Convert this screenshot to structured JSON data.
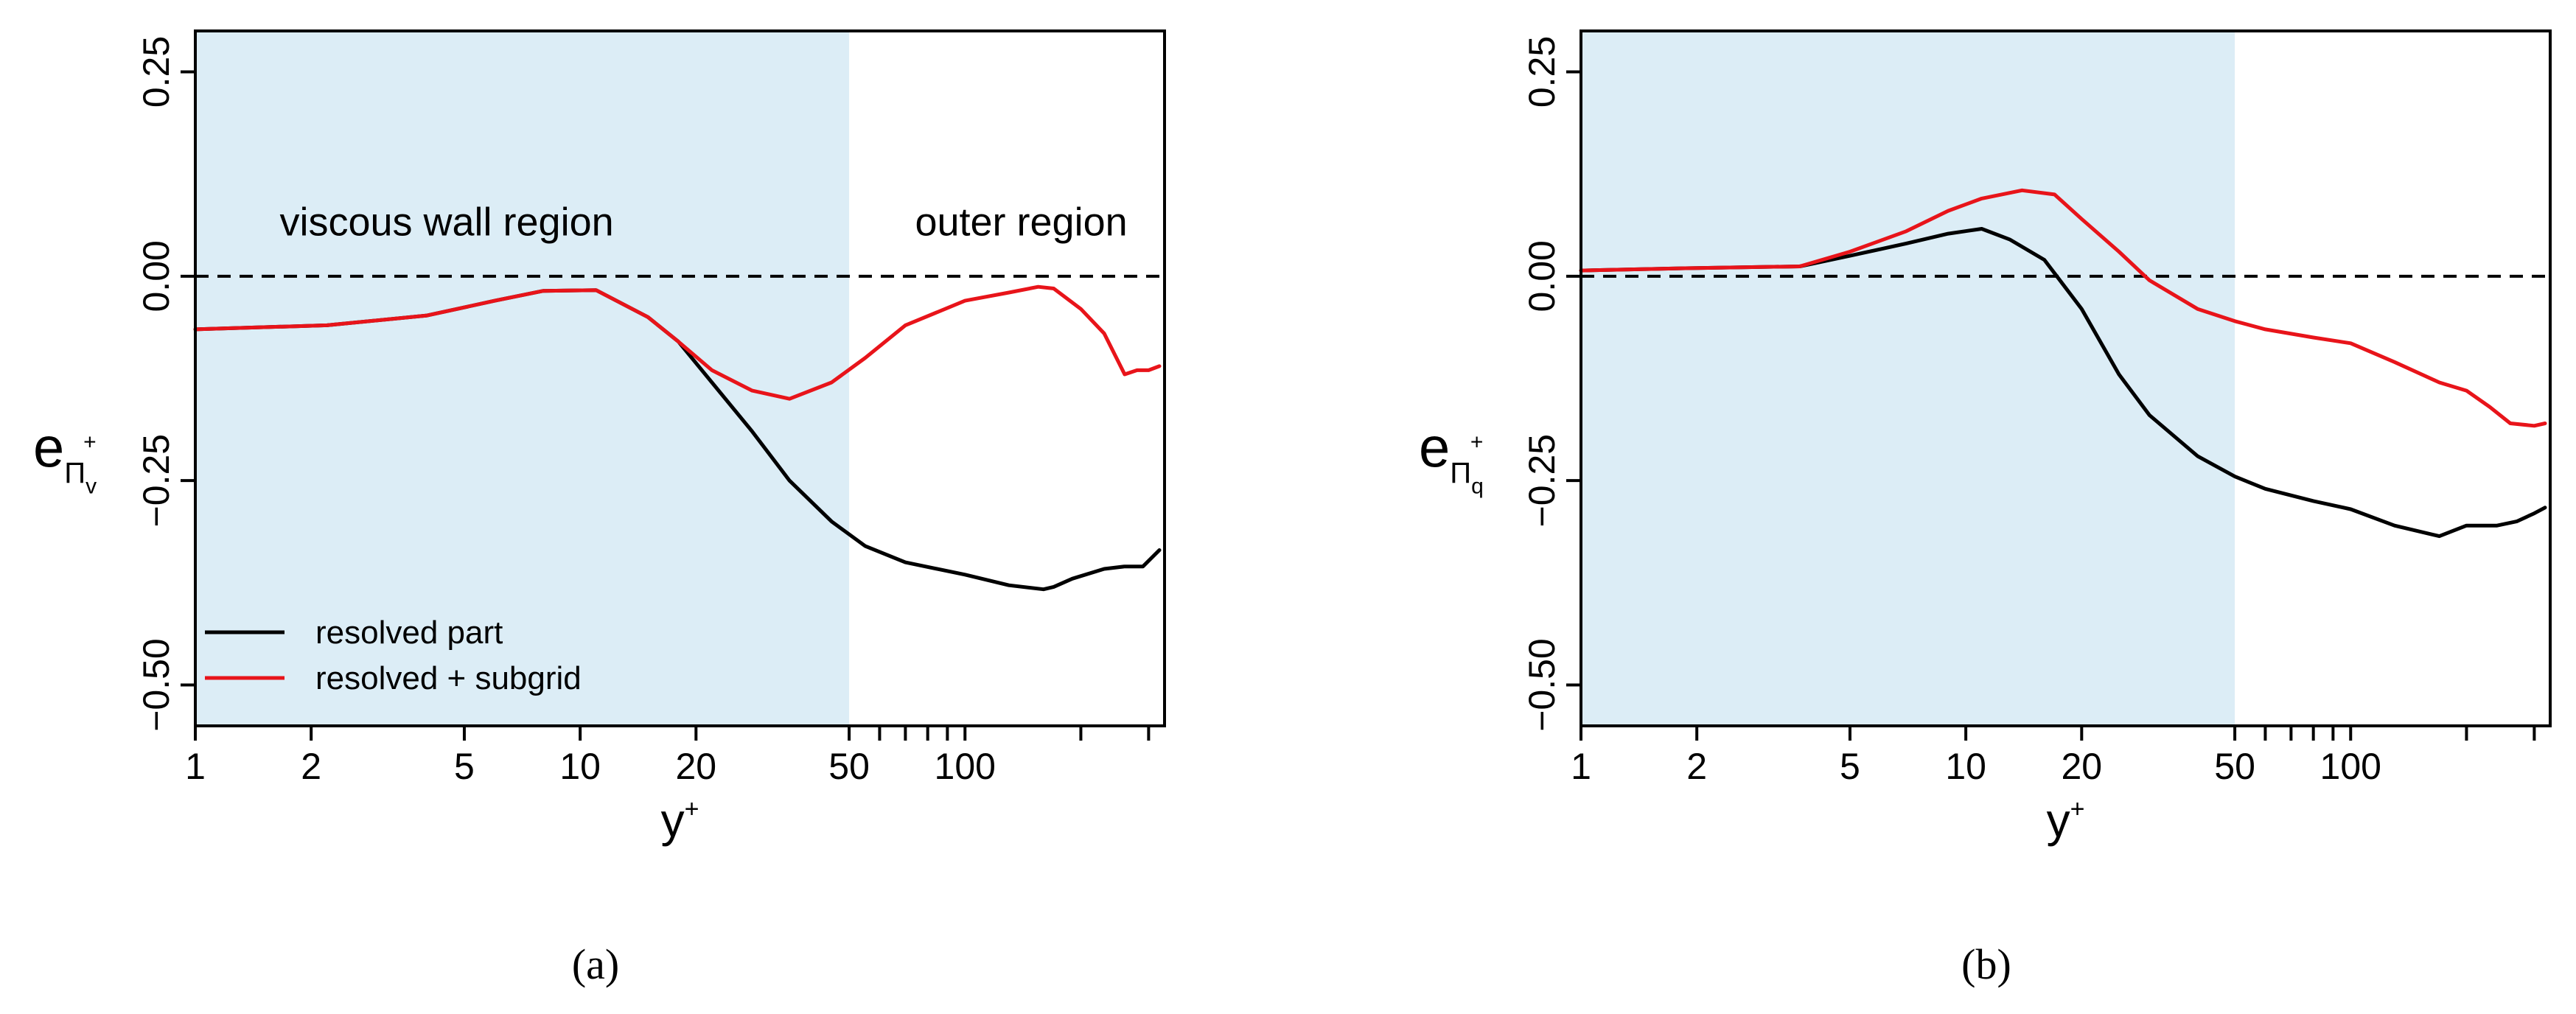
{
  "colors": {
    "shade": "#dcedf6",
    "resolved": "#000000",
    "subgrid": "#e8141a",
    "annotation_blue": "#1010e0",
    "annotation_black": "#000000"
  },
  "chart_data": [
    {
      "type": "line",
      "panel_label": "a",
      "caption": "(a)",
      "xlabel": "y",
      "xlabel_sup": "+",
      "ylabel_base": "e",
      "ylabel_sub": "Π",
      "ylabel_subsub": "v",
      "ylabel_sup": "+",
      "x_scale": "log",
      "xlim": [
        1,
        330
      ],
      "ylim": [
        -0.55,
        0.3
      ],
      "x_ticks": [
        {
          "value": 1,
          "label": "1"
        },
        {
          "value": 2,
          "label": "2"
        },
        {
          "value": 5,
          "label": "5"
        },
        {
          "value": 10,
          "label": "10"
        },
        {
          "value": 20,
          "label": "20"
        },
        {
          "value": 50,
          "label": "50"
        },
        {
          "value": 60,
          "label": ""
        },
        {
          "value": 70,
          "label": ""
        },
        {
          "value": 80,
          "label": ""
        },
        {
          "value": 90,
          "label": ""
        },
        {
          "value": 100,
          "label": "100"
        },
        {
          "value": 200,
          "label": ""
        },
        {
          "value": 300,
          "label": ""
        }
      ],
      "y_ticks": [
        {
          "value": 0.25,
          "label": "0.25"
        },
        {
          "value": 0.0,
          "label": "0.00"
        },
        {
          "value": -0.25,
          "label": "−0.25"
        },
        {
          "value": -0.5,
          "label": "−0.50"
        }
      ],
      "shaded_region": {
        "x_from": 1,
        "x_to": 50
      },
      "reference_line": {
        "y": 0.0,
        "style": "dashed"
      },
      "annotations": [
        {
          "text": "viscous wall region",
          "x": 4.5,
          "y": 0.05,
          "color_key": "annotation_blue"
        },
        {
          "text": "outer region",
          "x": 140,
          "y": 0.05,
          "color_key": "annotation_black"
        }
      ],
      "legend": {
        "position": "bottom-left",
        "entries": [
          {
            "label": "resolved part",
            "series": "resolved"
          },
          {
            "label": "resolved + subgrid",
            "series": "subgrid"
          }
        ]
      },
      "series": [
        {
          "name": "resolved part",
          "key": "resolved",
          "x": [
            1,
            2.2,
            4,
            6,
            8,
            11,
            15,
            18,
            22,
            28,
            35,
            45,
            55,
            70,
            100,
            130,
            160,
            170,
            190,
            230,
            260,
            290,
            320
          ],
          "y": [
            -0.065,
            -0.06,
            -0.048,
            -0.03,
            -0.018,
            -0.017,
            -0.05,
            -0.08,
            -0.13,
            -0.19,
            -0.25,
            -0.3,
            -0.33,
            -0.35,
            -0.365,
            -0.378,
            -0.383,
            -0.38,
            -0.37,
            -0.358,
            -0.355,
            -0.355,
            -0.335
          ]
        },
        {
          "name": "resolved + subgrid",
          "key": "subgrid",
          "x": [
            1,
            2.2,
            4,
            6,
            8,
            11,
            15,
            18,
            22,
            28,
            35,
            45,
            55,
            70,
            100,
            130,
            155,
            170,
            200,
            230,
            260,
            280,
            300,
            320
          ],
          "y": [
            -0.065,
            -0.06,
            -0.048,
            -0.03,
            -0.018,
            -0.017,
            -0.05,
            -0.08,
            -0.115,
            -0.14,
            -0.15,
            -0.13,
            -0.1,
            -0.06,
            -0.03,
            -0.02,
            -0.013,
            -0.015,
            -0.04,
            -0.07,
            -0.12,
            -0.115,
            -0.115,
            -0.11
          ]
        }
      ]
    },
    {
      "type": "line",
      "panel_label": "b",
      "caption": "(b)",
      "xlabel": "y",
      "xlabel_sup": "+",
      "ylabel_base": "e",
      "ylabel_sub": "Π",
      "ylabel_subsub": "q",
      "ylabel_sup": "+",
      "x_scale": "log",
      "xlim": [
        1,
        330
      ],
      "ylim": [
        -0.55,
        0.3
      ],
      "x_ticks": [
        {
          "value": 1,
          "label": "1"
        },
        {
          "value": 2,
          "label": "2"
        },
        {
          "value": 5,
          "label": "5"
        },
        {
          "value": 10,
          "label": "10"
        },
        {
          "value": 20,
          "label": "20"
        },
        {
          "value": 50,
          "label": "50"
        },
        {
          "value": 60,
          "label": ""
        },
        {
          "value": 70,
          "label": ""
        },
        {
          "value": 80,
          "label": ""
        },
        {
          "value": 90,
          "label": ""
        },
        {
          "value": 100,
          "label": "100"
        },
        {
          "value": 200,
          "label": ""
        },
        {
          "value": 300,
          "label": ""
        }
      ],
      "y_ticks": [
        {
          "value": 0.25,
          "label": "0.25"
        },
        {
          "value": 0.0,
          "label": "0.00"
        },
        {
          "value": -0.25,
          "label": "−0.25"
        },
        {
          "value": -0.5,
          "label": "−0.50"
        }
      ],
      "shaded_region": {
        "x_from": 1,
        "x_to": 50
      },
      "reference_line": {
        "y": 0.0,
        "style": "dashed"
      },
      "annotations": [],
      "legend": null,
      "series": [
        {
          "name": "resolved part",
          "key": "resolved",
          "x": [
            1,
            2,
            3.7,
            5,
            7,
            9,
            11,
            13,
            16,
            20,
            25,
            30,
            40,
            50,
            60,
            80,
            100,
            130,
            170,
            200,
            240,
            270,
            300,
            320
          ],
          "y": [
            0.007,
            0.01,
            0.012,
            0.025,
            0.04,
            0.052,
            0.058,
            0.045,
            0.02,
            -0.04,
            -0.12,
            -0.17,
            -0.22,
            -0.245,
            -0.26,
            -0.275,
            -0.285,
            -0.305,
            -0.318,
            -0.305,
            -0.305,
            -0.3,
            -0.29,
            -0.283
          ]
        },
        {
          "name": "resolved + subgrid",
          "key": "subgrid",
          "x": [
            1,
            2,
            3.7,
            5,
            7,
            9,
            11,
            14,
            17,
            20,
            25,
            30,
            40,
            50,
            60,
            80,
            100,
            130,
            170,
            200,
            230,
            260,
            300,
            320
          ],
          "y": [
            0.007,
            0.01,
            0.012,
            0.03,
            0.055,
            0.08,
            0.095,
            0.105,
            0.1,
            0.07,
            0.03,
            -0.005,
            -0.04,
            -0.055,
            -0.065,
            -0.075,
            -0.082,
            -0.105,
            -0.13,
            -0.14,
            -0.16,
            -0.18,
            -0.183,
            -0.18
          ]
        }
      ]
    }
  ]
}
